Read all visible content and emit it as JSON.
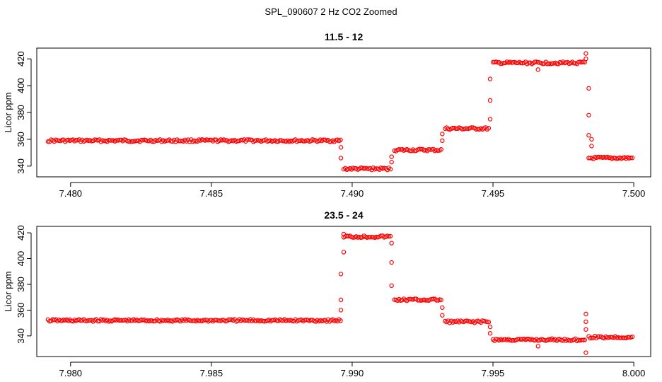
{
  "figure": {
    "title": "SPL_090607  2 Hz CO2 Zoomed"
  },
  "chart_data": [
    {
      "type": "scatter",
      "title": "11.5 - 12",
      "xlabel": "",
      "ylabel": "Licor ppm",
      "xlim": [
        7.4788,
        7.5006
      ],
      "ylim": [
        332,
        428
      ],
      "xticks": [
        7.48,
        7.485,
        7.49,
        7.495,
        7.5
      ],
      "xtick_labels": [
        "7.480",
        "7.485",
        "7.490",
        "7.495",
        "7.500"
      ],
      "yticks": [
        340,
        360,
        380,
        400,
        420
      ],
      "ytick_labels": [
        "340",
        "360",
        "380",
        "400",
        "420"
      ],
      "marker_color": "#ff0000",
      "segments": [
        {
          "x_start": 7.4792,
          "x_end": 7.4896,
          "y": 359
        },
        {
          "x_start": 7.4897,
          "x_end": 7.4914,
          "y": 338
        },
        {
          "x_start": 7.4915,
          "x_end": 7.4932,
          "y": 352
        },
        {
          "x_start": 7.4933,
          "x_end": 7.4949,
          "y": 368
        },
        {
          "x_start": 7.495,
          "x_end": 7.4983,
          "y": 417
        },
        {
          "x_start": 7.4984,
          "x_end": 7.5,
          "y": 346
        }
      ],
      "outliers": [
        {
          "x": 7.4896,
          "y": 354
        },
        {
          "x": 7.4896,
          "y": 346
        },
        {
          "x": 7.4914,
          "y": 343
        },
        {
          "x": 7.4914,
          "y": 347
        },
        {
          "x": 7.4932,
          "y": 359
        },
        {
          "x": 7.4932,
          "y": 364
        },
        {
          "x": 7.4949,
          "y": 375
        },
        {
          "x": 7.4949,
          "y": 389
        },
        {
          "x": 7.4949,
          "y": 405
        },
        {
          "x": 7.4966,
          "y": 412
        },
        {
          "x": 7.4983,
          "y": 424
        },
        {
          "x": 7.4983,
          "y": 420
        },
        {
          "x": 7.4984,
          "y": 398
        },
        {
          "x": 7.4984,
          "y": 378
        },
        {
          "x": 7.4984,
          "y": 363
        },
        {
          "x": 7.4985,
          "y": 360
        },
        {
          "x": 7.4985,
          "y": 355
        }
      ]
    },
    {
      "type": "scatter",
      "title": "23.5 - 24",
      "xlabel": "",
      "ylabel": "Licor ppm",
      "xlim": [
        7.9788,
        8.0006
      ],
      "ylim": [
        324,
        425
      ],
      "xticks": [
        7.98,
        7.985,
        7.99,
        7.995,
        8.0
      ],
      "xtick_labels": [
        "7.980",
        "7.985",
        "7.990",
        "7.995",
        "8.000"
      ],
      "yticks": [
        340,
        360,
        380,
        400,
        420
      ],
      "ytick_labels": [
        "340",
        "360",
        "380",
        "400",
        "420"
      ],
      "marker_color": "#ff0000",
      "segments": [
        {
          "x_start": 7.9792,
          "x_end": 7.9896,
          "y": 352
        },
        {
          "x_start": 7.9897,
          "x_end": 7.9914,
          "y": 417
        },
        {
          "x_start": 7.9915,
          "x_end": 7.9932,
          "y": 368
        },
        {
          "x_start": 7.9933,
          "x_end": 7.9949,
          "y": 351
        },
        {
          "x_start": 7.995,
          "x_end": 7.9983,
          "y": 337
        },
        {
          "x_start": 7.9984,
          "x_end": 8.0,
          "y": 339
        }
      ],
      "outliers": [
        {
          "x": 7.9896,
          "y": 360
        },
        {
          "x": 7.9896,
          "y": 368
        },
        {
          "x": 7.9896,
          "y": 388
        },
        {
          "x": 7.9897,
          "y": 405
        },
        {
          "x": 7.9897,
          "y": 419
        },
        {
          "x": 7.9914,
          "y": 412
        },
        {
          "x": 7.9914,
          "y": 397
        },
        {
          "x": 7.9914,
          "y": 379
        },
        {
          "x": 7.9932,
          "y": 362
        },
        {
          "x": 7.9932,
          "y": 356
        },
        {
          "x": 7.9949,
          "y": 347
        },
        {
          "x": 7.9949,
          "y": 342
        },
        {
          "x": 7.9966,
          "y": 332
        },
        {
          "x": 7.9983,
          "y": 357
        },
        {
          "x": 7.9983,
          "y": 351
        },
        {
          "x": 7.9983,
          "y": 345
        },
        {
          "x": 7.9983,
          "y": 327
        }
      ]
    }
  ]
}
